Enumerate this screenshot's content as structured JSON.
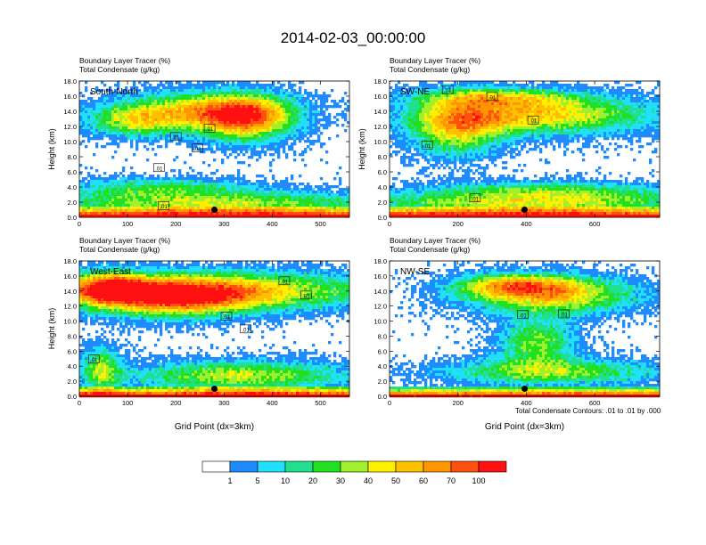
{
  "figure_title": "2014-02-03_00:00:00",
  "footnote": "Total Condensate Contours: .01 to .01 by .000",
  "chart_data": {
    "type": "heatmap",
    "panels": [
      {
        "name": "South-North",
        "field_labels": [
          "Boundary Layer Tracer    (%)",
          "Total Condensate    (g/kg)"
        ],
        "ylabel": "Height (km)",
        "xlabel": "",
        "xlim": [
          0,
          560
        ],
        "ylim": [
          0,
          18
        ],
        "xticks": [
          0,
          100,
          200,
          300,
          400,
          500
        ],
        "yticks": [
          "0.0",
          "2.0",
          "4.0",
          "6.0",
          "8.0",
          "10.0",
          "12.0",
          "14.0",
          "16.0",
          "18.0"
        ],
        "marker": {
          "x": 280,
          "y": 1.0
        },
        "contour_labels": [
          {
            "text": ".01",
            "x": 200,
            "y": 10.6
          },
          {
            "text": ".01",
            "x": 270,
            "y": 11.7
          },
          {
            "text": ".01",
            "x": 245,
            "y": 9.1
          },
          {
            "text": ".01",
            "x": 165,
            "y": 6.5
          },
          {
            "text": ".01",
            "x": 175,
            "y": 1.5
          }
        ]
      },
      {
        "name": "SW-NE",
        "field_labels": [
          "Boundary Layer Tracer    (%)",
          "Total Condensate    (g/kg)"
        ],
        "ylabel": "Height (km)",
        "xlabel": "",
        "xlim": [
          0,
          790
        ],
        "ylim": [
          0,
          18
        ],
        "xticks": [
          0,
          200,
          400,
          600
        ],
        "yticks": [
          "0.0",
          "2.0",
          "4.0",
          "6.0",
          "8.0",
          "10.0",
          "12.0",
          "14.0",
          "16.0",
          "18.0"
        ],
        "marker": {
          "x": 395,
          "y": 1.0
        },
        "contour_labels": [
          {
            "text": ".01",
            "x": 170,
            "y": 16.8
          },
          {
            "text": ".01",
            "x": 300,
            "y": 15.9
          },
          {
            "text": ".01",
            "x": 420,
            "y": 12.8
          },
          {
            "text": ".01",
            "x": 110,
            "y": 9.5
          },
          {
            "text": ".01",
            "x": 250,
            "y": 2.5
          }
        ]
      },
      {
        "name": "West-East",
        "field_labels": [
          "Boundary Layer Tracer    (%)",
          "Total Condensate    (g/kg)"
        ],
        "ylabel": "Height (km)",
        "xlabel": "Grid Point (dx=3km)",
        "xlim": [
          0,
          560
        ],
        "ylim": [
          0,
          18
        ],
        "xticks": [
          0,
          100,
          200,
          300,
          400,
          500
        ],
        "yticks": [
          "0.0",
          "2.0",
          "4.0",
          "6.0",
          "8.0",
          "10.0",
          "12.0",
          "14.0",
          "16.0",
          "18.0"
        ],
        "marker": {
          "x": 280,
          "y": 1.0
        },
        "contour_labels": [
          {
            "text": ".01",
            "x": 425,
            "y": 15.3
          },
          {
            "text": ".01",
            "x": 470,
            "y": 13.4
          },
          {
            "text": ".01",
            "x": 305,
            "y": 10.6
          },
          {
            "text": ".01",
            "x": 345,
            "y": 8.9
          },
          {
            "text": ".01",
            "x": 30,
            "y": 4.9
          }
        ]
      },
      {
        "name": "NW-SE",
        "field_labels": [
          "Boundary Layer Tracer    (%)",
          "Total Condensate    (g/kg)"
        ],
        "ylabel": "",
        "xlabel": "Grid Point (dx=3km)",
        "xlim": [
          0,
          790
        ],
        "ylim": [
          0,
          18
        ],
        "xticks": [
          0,
          200,
          400,
          600
        ],
        "yticks": [
          "0.0",
          "2.0",
          "4.0",
          "6.0",
          "8.0",
          "10.0",
          "12.0",
          "14.0",
          "16.0",
          "18.0"
        ],
        "marker": {
          "x": 395,
          "y": 1.0
        },
        "contour_labels": [
          {
            "text": ".01",
            "x": 390,
            "y": 10.8
          },
          {
            "text": ".01",
            "x": 510,
            "y": 10.9
          }
        ]
      }
    ],
    "colorbar": {
      "levels": [
        "1",
        "5",
        "10",
        "20",
        "30",
        "40",
        "50",
        "60",
        "70",
        "100"
      ],
      "colors": [
        "#ffffff",
        "#1e8cff",
        "#20e0ff",
        "#20e090",
        "#20e020",
        "#a0f030",
        "#fff000",
        "#ffc000",
        "#ff9600",
        "#ff5010",
        "#ff1010"
      ]
    }
  }
}
